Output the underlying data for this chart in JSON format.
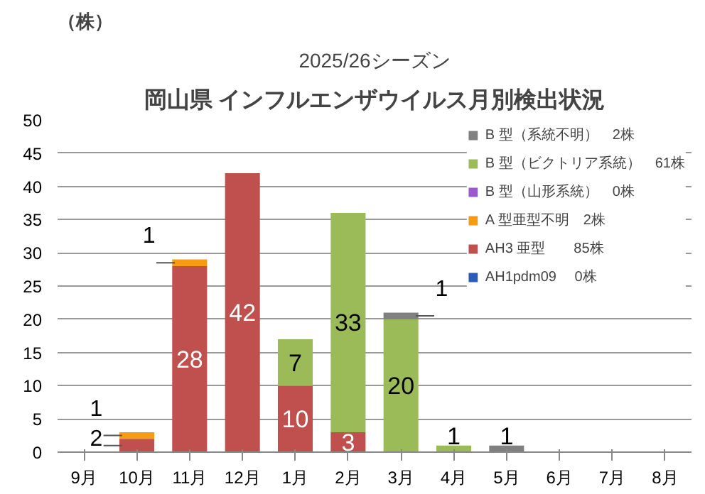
{
  "chart_data": {
    "type": "bar",
    "subtitle": "2025/26シーズン",
    "title": "岡山県 インフルエンザウイルス月別検出状況",
    "ylabel": "（株）",
    "categories": [
      "9月",
      "10月",
      "11月",
      "12月",
      "1月",
      "2月",
      "3月",
      "4月",
      "5月",
      "6月",
      "7月",
      "8月"
    ],
    "stacked": true,
    "ylim": [
      0,
      50
    ],
    "yticks": [
      0,
      5,
      10,
      15,
      20,
      25,
      30,
      35,
      40,
      45,
      50
    ],
    "grid": "y",
    "legend": "top right",
    "series": [
      {
        "name": "AH1pdm09　 0株",
        "color": "#2a5cb8",
        "values": [
          0,
          0,
          0,
          0,
          0,
          0,
          0,
          0,
          0,
          0,
          0,
          0
        ],
        "value_labels": [
          null,
          null,
          null,
          null,
          null,
          null,
          null,
          null,
          null,
          null,
          null,
          null
        ]
      },
      {
        "name": "AH3 亜型　　85株",
        "color": "#c0504d",
        "values": [
          0,
          2,
          28,
          42,
          10,
          3,
          0,
          0,
          0,
          0,
          0,
          0
        ],
        "value_labels": [
          null,
          "2",
          "28",
          "42",
          "10",
          "3",
          null,
          null,
          null,
          null,
          null,
          null
        ]
      },
      {
        "name": "A 型亜型不明　2株",
        "color": "#f79a14",
        "values": [
          0,
          1,
          1,
          0,
          0,
          0,
          0,
          0,
          0,
          0,
          0,
          0
        ],
        "value_labels": [
          null,
          "1",
          "1",
          null,
          null,
          null,
          null,
          null,
          null,
          null,
          null,
          null
        ]
      },
      {
        "name": "B 型（山形系統）　0株",
        "color": "#9b59d0",
        "values": [
          0,
          0,
          0,
          0,
          0,
          0,
          0,
          0,
          0,
          0,
          0,
          0
        ],
        "value_labels": [
          null,
          null,
          null,
          null,
          null,
          null,
          null,
          null,
          null,
          null,
          null,
          null
        ]
      },
      {
        "name": "B 型（ビクトリア系統）　61株",
        "color": "#9bbb59",
        "values": [
          0,
          0,
          0,
          0,
          7,
          33,
          20,
          1,
          0,
          0,
          0,
          0
        ],
        "value_labels": [
          null,
          null,
          null,
          null,
          "7",
          "33",
          "20",
          "1",
          null,
          null,
          null,
          null
        ]
      },
      {
        "name": "B 型（系統不明）　2株",
        "color": "#808080",
        "values": [
          0,
          0,
          0,
          0,
          0,
          0,
          1,
          0,
          1,
          0,
          0,
          0
        ],
        "value_labels": [
          null,
          null,
          null,
          null,
          null,
          null,
          "1",
          null,
          "1",
          null,
          null,
          null
        ]
      }
    ]
  }
}
